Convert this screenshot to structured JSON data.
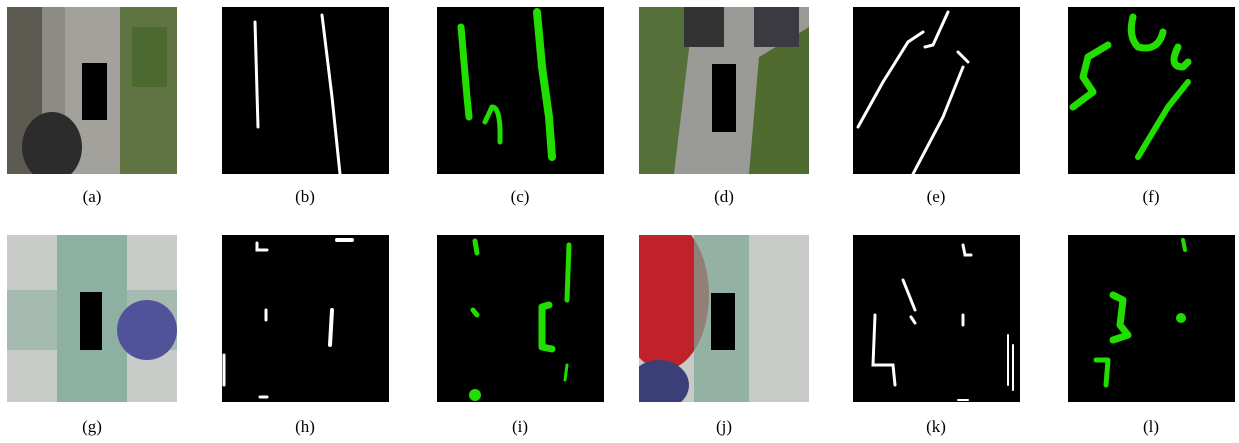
{
  "figure": {
    "panels": [
      {
        "caption": "(a)"
      },
      {
        "caption": "(b)"
      },
      {
        "caption": "(c)"
      },
      {
        "caption": "(d)"
      },
      {
        "caption": "(e)"
      },
      {
        "caption": "(f)"
      },
      {
        "caption": "(g)"
      },
      {
        "caption": "(h)"
      },
      {
        "caption": "(i)"
      },
      {
        "caption": "(j)"
      },
      {
        "caption": "(k)"
      },
      {
        "caption": "(l)"
      }
    ]
  }
}
